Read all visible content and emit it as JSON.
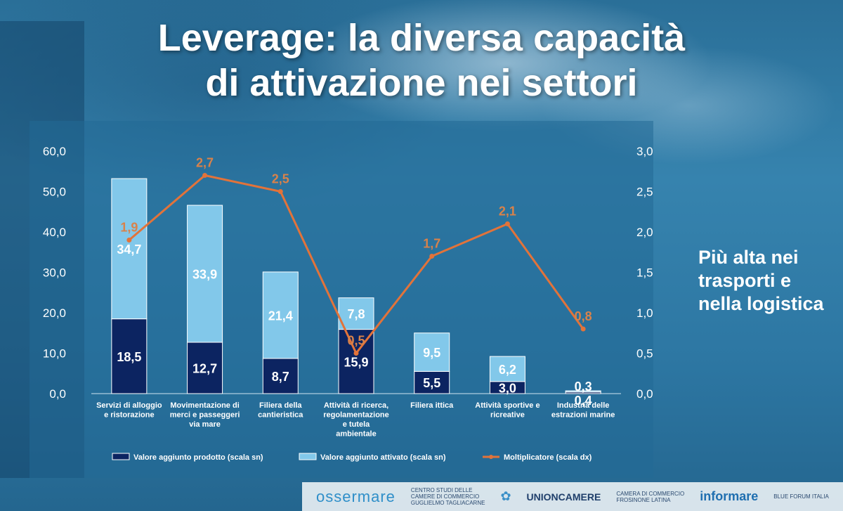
{
  "title": {
    "line1": "Leverage: la diversa capacità",
    "line2": "di attivazione nei settori"
  },
  "side_note": "Più alta nei trasporti e nella logistica",
  "colors": {
    "dark_bar": "#0c2461",
    "light_bar": "#82c8ea",
    "line": "#e2733a",
    "line_label": "#d9824a"
  },
  "footer": {
    "logo1": "ossermare",
    "logo2_line1": "CENTRO STUDI DELLE",
    "logo2_line2": "CAMERE DI COMMERCIO",
    "logo2_line3": "GUGLIELMO TAGLIACARNE",
    "logo3": "UNIONCAMERE",
    "logo4_line1": "CAMERA DI COMMERCIO",
    "logo4_line2": "FROSINONE LATINA",
    "logo5": "informare",
    "logo6": "BLUE FORUM ITALIA"
  },
  "chart_data": {
    "type": "bar",
    "stacked": true,
    "categories": [
      [
        "Servizi di alloggio",
        "e ristorazione"
      ],
      [
        "Movimentazione di",
        "merci e passeggeri",
        "via mare"
      ],
      [
        "Filiera della",
        "cantieristica"
      ],
      [
        "Attività di ricerca,",
        "regolamentazione",
        "e tutela",
        "ambientale"
      ],
      [
        "Filiera ittica"
      ],
      [
        "Attività sportive e",
        "ricreative"
      ],
      [
        "Industria delle",
        "estrazioni marine"
      ]
    ],
    "series": [
      {
        "name": "Valore aggiunto prodotto (scala sn)",
        "axis": "left",
        "values": [
          18.5,
          12.7,
          8.7,
          15.9,
          5.5,
          3.0,
          0.4
        ],
        "labels": [
          "18,5",
          "12,7",
          "8,7",
          "15,9",
          "5,5",
          "3,0",
          "0,4"
        ]
      },
      {
        "name": "Valore aggiunto attivato (scala sn)",
        "axis": "left",
        "values": [
          34.7,
          33.9,
          21.4,
          7.8,
          9.5,
          6.2,
          0.3
        ],
        "labels": [
          "34,7",
          "33,9",
          "21,4",
          "7,8",
          "9,5",
          "6,2",
          "0,3"
        ]
      },
      {
        "name": "Moltiplicatore (scala dx)",
        "axis": "right",
        "type": "line",
        "values": [
          1.9,
          2.7,
          2.5,
          0.5,
          1.7,
          2.1,
          0.8
        ],
        "labels": [
          "1,9",
          "2,7",
          "2,5",
          "0,5",
          "1,7",
          "2,1",
          "0,8"
        ]
      }
    ],
    "y_left": {
      "min": 0,
      "max": 60,
      "ticks": [
        "0,0",
        "10,0",
        "20,0",
        "30,0",
        "40,0",
        "50,0",
        "60,0"
      ]
    },
    "y_right": {
      "min": 0,
      "max": 3,
      "ticks": [
        "0,0",
        "0,5",
        "1,0",
        "1,5",
        "2,0",
        "2,5",
        "3,0"
      ]
    },
    "legend_position": "bottom",
    "grid": false
  }
}
